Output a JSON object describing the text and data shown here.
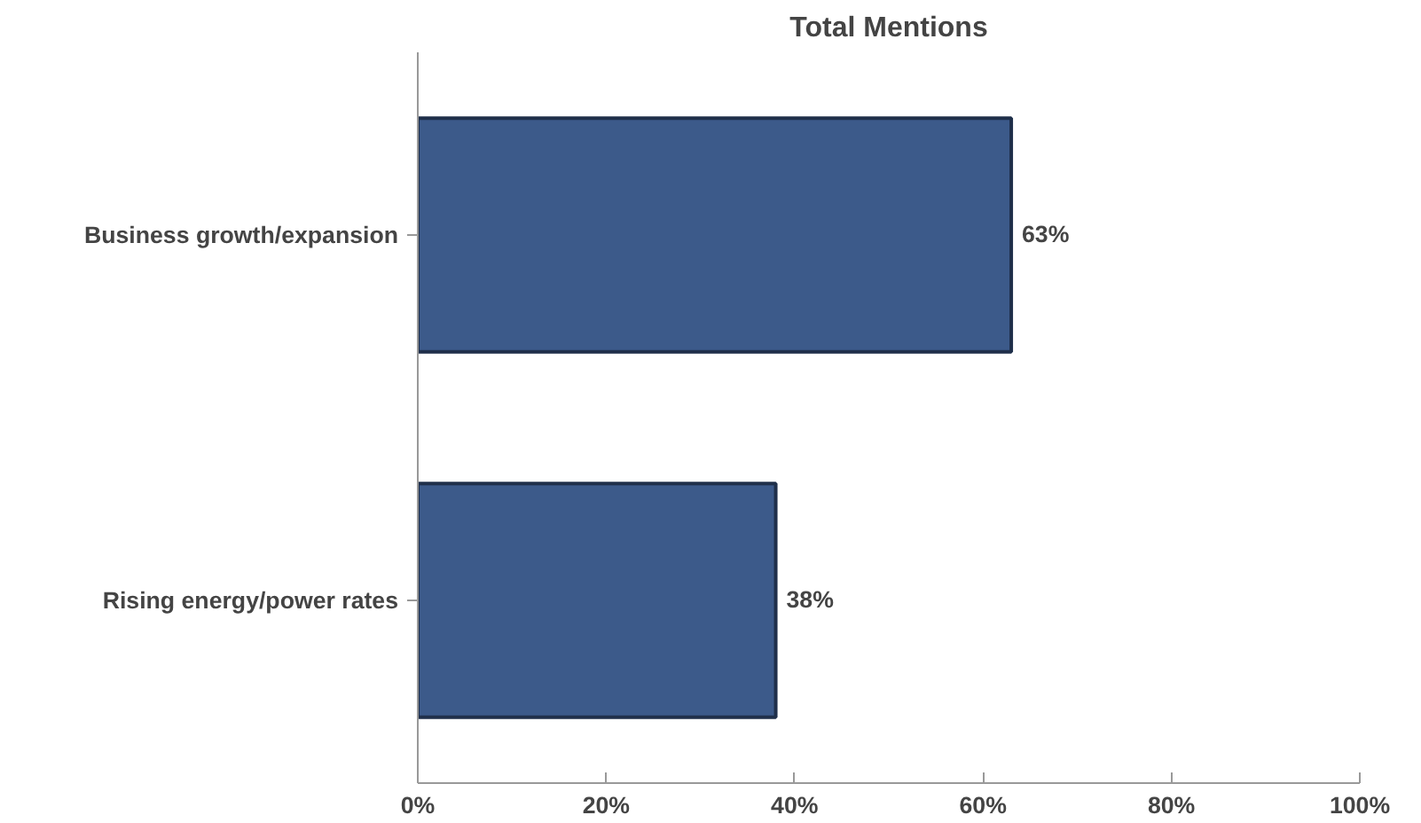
{
  "chart_data": {
    "type": "bar",
    "orientation": "horizontal",
    "title": "Total Mentions",
    "categories": [
      "Business growth/expansion",
      "Rising energy/power rates"
    ],
    "values": [
      63,
      38
    ],
    "value_labels": [
      "63%",
      "38%"
    ],
    "color": "#3c5a8a",
    "xlim": [
      0,
      100
    ],
    "xticks": [
      {
        "value": 0,
        "label": "0%"
      },
      {
        "value": 20,
        "label": "20%"
      },
      {
        "value": 40,
        "label": "40%"
      },
      {
        "value": 60,
        "label": "60%"
      },
      {
        "value": 80,
        "label": "80%"
      },
      {
        "value": 100,
        "label": "100%"
      }
    ],
    "grid": false
  }
}
